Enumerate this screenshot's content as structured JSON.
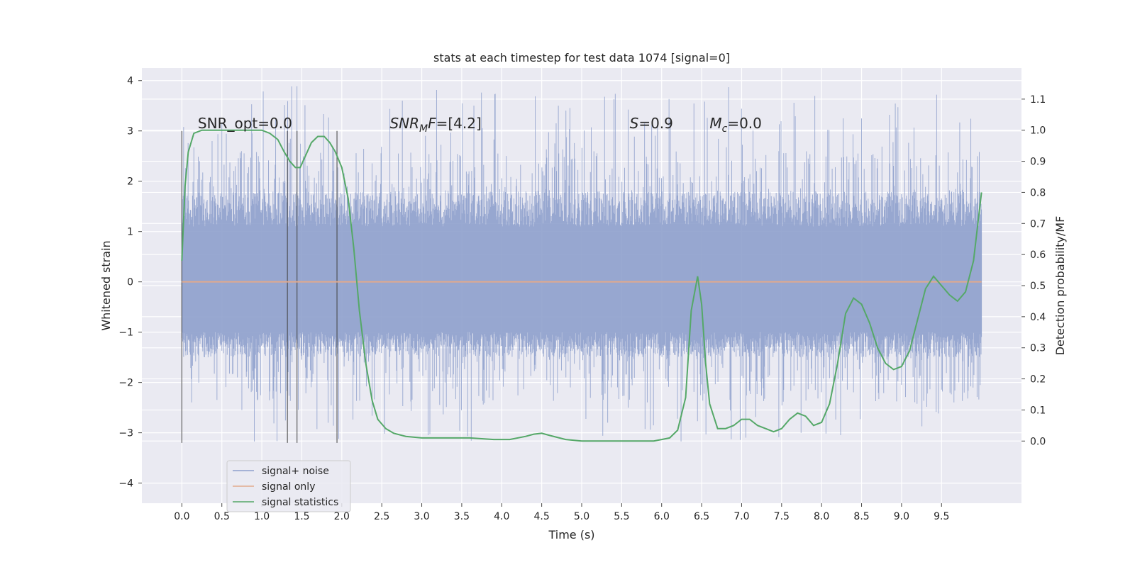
{
  "chart_data": {
    "type": "line",
    "title": "stats at each timestep for test data 1074 [signal=0]",
    "xlabel": "Time (s)",
    "ylabel": "Whitened strain",
    "y2label": "Detection probability/MF",
    "xlim": [
      -0.5,
      10.5
    ],
    "ylim": [
      -4.4,
      4.25
    ],
    "y2lim": [
      -0.2,
      1.2
    ],
    "x_ticks": [
      0.0,
      0.5,
      1.0,
      1.5,
      2.0,
      2.5,
      3.0,
      3.5,
      4.0,
      4.5,
      5.0,
      5.5,
      6.0,
      6.5,
      7.0,
      7.5,
      8.0,
      8.5,
      9.0,
      9.5
    ],
    "x_tick_labels": [
      "0.0",
      "0.5",
      "1.0",
      "1.5",
      "2.0",
      "2.5",
      "3.0",
      "3.5",
      "4.0",
      "4.5",
      "5.0",
      "5.5",
      "6.0",
      "6.5",
      "7.0",
      "7.5",
      "8.0",
      "8.5",
      "9.0",
      "9.5"
    ],
    "y_ticks": [
      -4,
      -3,
      -2,
      -1,
      0,
      1,
      2,
      3,
      4
    ],
    "y_tick_labels": [
      "−4",
      "−3",
      "−2",
      "−1",
      "0",
      "1",
      "2",
      "3",
      "4"
    ],
    "y2_ticks": [
      0.0,
      0.1,
      0.2,
      0.3,
      0.4,
      0.5,
      0.6,
      0.7,
      0.8,
      0.9,
      1.0,
      1.1
    ],
    "y2_tick_labels": [
      "0.0",
      "0.1",
      "0.2",
      "0.3",
      "0.4",
      "0.5",
      "0.6",
      "0.7",
      "0.8",
      "0.9",
      "1.0",
      "1.1"
    ],
    "grid": true,
    "legend_position": "lower-left",
    "series": [
      {
        "name": "signal+ noise",
        "kind": "noise-band",
        "color": "#8ea0cc",
        "axis": "left",
        "x_range": [
          0.0,
          10.0
        ],
        "typical_range": [
          -1.5,
          1.8
        ],
        "envelope": [
          -3.2,
          3.9
        ]
      },
      {
        "name": "signal only",
        "color": "#e1a98c",
        "axis": "left",
        "x": [
          0.0,
          10.0
        ],
        "y": [
          0.0,
          0.0
        ]
      },
      {
        "name": "signal statistics",
        "color": "#55a868",
        "axis": "right",
        "x": [
          0.0,
          0.04,
          0.08,
          0.15,
          0.25,
          0.4,
          0.6,
          0.8,
          1.0,
          1.1,
          1.2,
          1.28,
          1.35,
          1.42,
          1.48,
          1.55,
          1.62,
          1.7,
          1.78,
          1.85,
          1.92,
          2.0,
          2.08,
          2.15,
          2.22,
          2.3,
          2.38,
          2.45,
          2.55,
          2.65,
          2.8,
          3.0,
          3.3,
          3.6,
          3.9,
          4.1,
          4.3,
          4.4,
          4.5,
          4.6,
          4.8,
          5.0,
          5.3,
          5.6,
          5.9,
          6.0,
          6.1,
          6.2,
          6.3,
          6.37,
          6.45,
          6.5,
          6.55,
          6.6,
          6.7,
          6.8,
          6.9,
          7.0,
          7.1,
          7.2,
          7.3,
          7.4,
          7.5,
          7.6,
          7.7,
          7.8,
          7.9,
          8.0,
          8.1,
          8.2,
          8.3,
          8.4,
          8.5,
          8.6,
          8.7,
          8.8,
          8.9,
          9.0,
          9.1,
          9.2,
          9.3,
          9.4,
          9.5,
          9.6,
          9.7,
          9.8,
          9.9,
          10.0
        ],
        "y": [
          0.58,
          0.82,
          0.93,
          0.99,
          1.0,
          1.0,
          1.0,
          1.0,
          1.0,
          0.99,
          0.97,
          0.93,
          0.9,
          0.88,
          0.88,
          0.92,
          0.96,
          0.98,
          0.98,
          0.96,
          0.93,
          0.88,
          0.78,
          0.62,
          0.42,
          0.25,
          0.13,
          0.07,
          0.04,
          0.025,
          0.015,
          0.01,
          0.01,
          0.01,
          0.005,
          0.005,
          0.015,
          0.022,
          0.025,
          0.018,
          0.005,
          0.0,
          0.0,
          0.0,
          0.0,
          0.005,
          0.01,
          0.035,
          0.14,
          0.42,
          0.53,
          0.44,
          0.25,
          0.12,
          0.04,
          0.04,
          0.05,
          0.07,
          0.07,
          0.05,
          0.04,
          0.03,
          0.04,
          0.07,
          0.09,
          0.08,
          0.05,
          0.06,
          0.12,
          0.25,
          0.41,
          0.46,
          0.44,
          0.38,
          0.3,
          0.25,
          0.23,
          0.24,
          0.29,
          0.39,
          0.49,
          0.53,
          0.5,
          0.47,
          0.45,
          0.48,
          0.58,
          0.8
        ]
      }
    ],
    "markers_x": [
      0.0,
      1.32,
      1.44,
      1.94
    ],
    "markers_range": [
      -3.2,
      3.0
    ],
    "annotations": [
      {
        "text": "SNR_opt=0.0",
        "x": 0.2,
        "y": 3.05
      },
      {
        "text": "=[4.2]",
        "math": {
          "base": "SNR",
          "sub": "M",
          "tail": "F"
        },
        "x": 2.6,
        "y": 3.05
      },
      {
        "text": "=0.9",
        "math": {
          "base": "S"
        },
        "x": 5.6,
        "y": 3.05
      },
      {
        "text": "=0.0",
        "math": {
          "base": "M",
          "sub": "c"
        },
        "x": 6.6,
        "y": 3.05
      }
    ]
  }
}
